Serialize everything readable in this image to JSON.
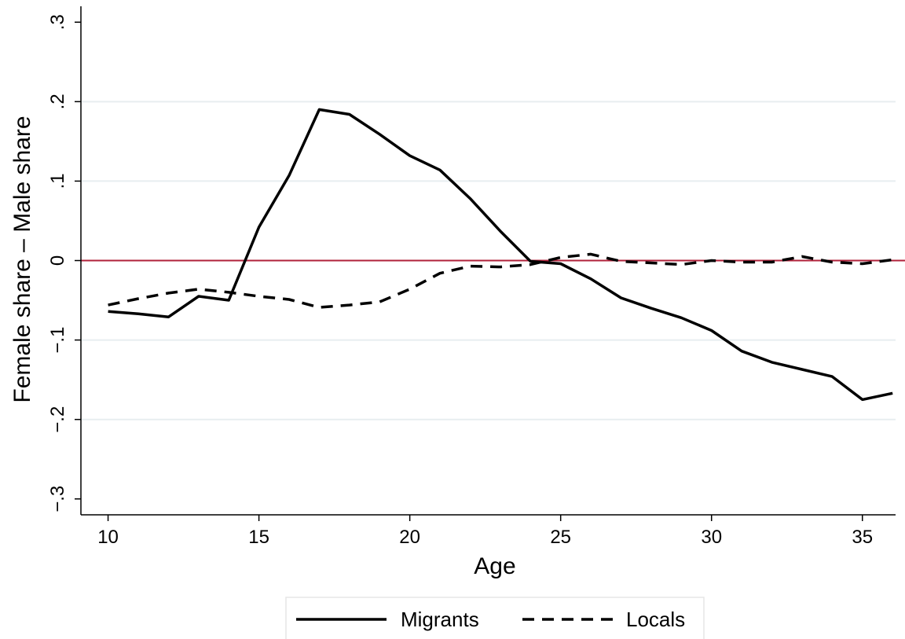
{
  "chart_data": {
    "type": "line",
    "title": "",
    "xlabel": "Age",
    "ylabel": "Female share – Male share",
    "xlim": [
      9.1,
      36.1
    ],
    "ylim": [
      -0.32,
      0.32
    ],
    "xticks": [
      10,
      15,
      20,
      25,
      30,
      35
    ],
    "xtick_labels": [
      "10",
      "15",
      "20",
      "25",
      "30",
      "35"
    ],
    "yticks": [
      -0.3,
      -0.2,
      -0.1,
      0,
      0.1,
      0.2,
      0.3
    ],
    "ytick_labels": [
      "−.3",
      "−.2",
      "−.1",
      "0",
      ".1",
      ".2",
      ".3"
    ],
    "grid": true,
    "reference_line": {
      "y": 0,
      "color": "#b0213a"
    },
    "legend_position": "bottom",
    "series": [
      {
        "name": "Migrants",
        "style": "solid",
        "color": "#000000",
        "x": [
          10,
          11,
          12,
          13,
          14,
          15,
          16,
          17,
          18,
          19,
          20,
          21,
          22,
          23,
          24,
          25,
          26,
          27,
          28,
          29,
          30,
          31,
          32,
          33,
          34,
          35,
          36
        ],
        "y": [
          -0.064,
          -0.067,
          -0.071,
          -0.045,
          -0.05,
          0.042,
          0.107,
          0.19,
          0.184,
          0.159,
          0.132,
          0.114,
          0.078,
          0.037,
          -0.001,
          -0.004,
          -0.023,
          -0.047,
          -0.06,
          -0.072,
          -0.088,
          -0.114,
          -0.128,
          -0.137,
          -0.146,
          -0.175,
          -0.167
        ]
      },
      {
        "name": "Locals",
        "style": "dashed",
        "color": "#000000",
        "x": [
          10,
          11,
          12,
          13,
          14,
          15,
          16,
          17,
          18,
          19,
          20,
          21,
          22,
          23,
          24,
          25,
          26,
          27,
          28,
          29,
          30,
          31,
          32,
          33,
          34,
          35,
          36
        ],
        "y": [
          -0.056,
          -0.048,
          -0.041,
          -0.036,
          -0.04,
          -0.045,
          -0.049,
          -0.059,
          -0.056,
          -0.052,
          -0.036,
          -0.016,
          -0.007,
          -0.008,
          -0.005,
          0.004,
          0.008,
          -0.001,
          -0.003,
          -0.005,
          0.0,
          -0.002,
          -0.002,
          0.005,
          -0.002,
          -0.004,
          0.001
        ]
      }
    ]
  }
}
